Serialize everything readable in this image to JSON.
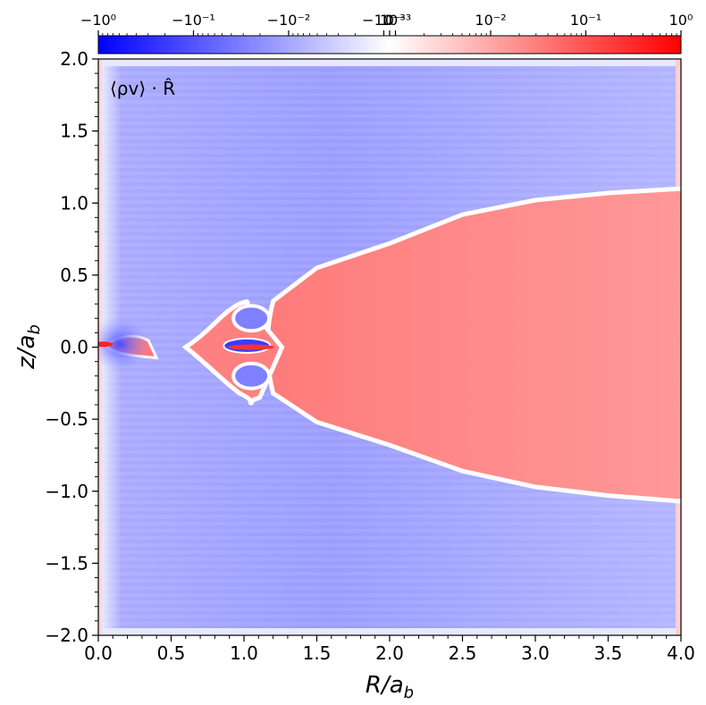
{
  "chart_data": {
    "type": "heatmap",
    "title": "",
    "annotation": "⟨ρv⟩ · R̂",
    "xlabel": "R/a_b",
    "ylabel": "z/a_b",
    "xlim": [
      0.0,
      4.0
    ],
    "ylim": [
      -2.0,
      2.0
    ],
    "x_ticks": [
      0.0,
      0.5,
      1.0,
      1.5,
      2.0,
      2.5,
      3.0,
      3.5,
      4.0
    ],
    "x_tick_labels": [
      "0.0",
      "0.5",
      "1.0",
      "1.5",
      "2.0",
      "2.5",
      "3.0",
      "3.5",
      "4.0"
    ],
    "y_ticks": [
      2.0,
      1.5,
      1.0,
      0.5,
      0.0,
      -0.5,
      -1.0,
      -1.5,
      -2.0
    ],
    "y_tick_labels": [
      "2.0",
      "1.5",
      "1.0",
      "0.5",
      "0.0",
      "−0.5",
      "−1.0",
      "−1.5",
      "−2.0"
    ],
    "colorbar": {
      "scale": "symlog",
      "linthresh": 0.001,
      "range": [
        -1,
        1
      ],
      "ticks": [
        -1,
        -0.1,
        -0.01,
        -0.001,
        0,
        0.001,
        0.01,
        0.1,
        1
      ],
      "tick_labels": [
        "−10⁰",
        "−10⁻¹",
        "−10⁻²",
        "−10⁻³",
        "0",
        "10⁻³",
        "10⁻²",
        "10⁻¹",
        "10⁰"
      ],
      "colormap": "bwr",
      "colors": {
        "negative": "#0000ff",
        "zero": "#ffffff",
        "positive": "#ff0000"
      }
    },
    "regions": {
      "outer_background": {
        "sign": "negative",
        "approx_value": -0.01
      },
      "main_lobe": {
        "sign": "positive",
        "approx_value": 0.01,
        "upper_boundary": [
          [
            1.2,
            0.32
          ],
          [
            1.5,
            0.55
          ],
          [
            2.0,
            0.72
          ],
          [
            2.5,
            0.92
          ],
          [
            3.0,
            1.02
          ],
          [
            3.5,
            1.07
          ],
          [
            4.0,
            1.1
          ]
        ],
        "lower_boundary": [
          [
            1.2,
            -0.32
          ],
          [
            1.5,
            -0.52
          ],
          [
            2.0,
            -0.68
          ],
          [
            2.5,
            -0.86
          ],
          [
            3.0,
            -0.97
          ],
          [
            3.5,
            -1.03
          ],
          [
            4.0,
            -1.07
          ]
        ]
      },
      "left_column": {
        "sign": "positive",
        "approx_value": 0.003,
        "x_range": [
          0.0,
          0.02
        ]
      },
      "inner_blob": {
        "sign": "positive",
        "approx_value": 0.01,
        "x_range": [
          0.6,
          1.2
        ],
        "y_range": [
          -0.35,
          0.3
        ]
      },
      "small_lobe": {
        "sign": "positive",
        "approx_value": 0.03,
        "x_range": [
          0.05,
          0.4
        ],
        "y_range": [
          -0.05,
          0.07
        ]
      },
      "hot_spots": [
        {
          "sign": "positive",
          "approx_value": 0.5,
          "x": 0.0,
          "y": 0.02
        },
        {
          "sign": "positive",
          "approx_value": 0.5,
          "x": 1.05,
          "y": 0.0
        }
      ],
      "blue_hollows": [
        {
          "sign": "negative",
          "approx_value": -0.05,
          "x": 1.05,
          "y": 0.2
        },
        {
          "sign": "negative",
          "approx_value": -0.05,
          "x": 1.05,
          "y": -0.2
        },
        {
          "sign": "negative",
          "approx_value": -0.2,
          "x": 0.15,
          "y": 0.02
        }
      ]
    }
  }
}
